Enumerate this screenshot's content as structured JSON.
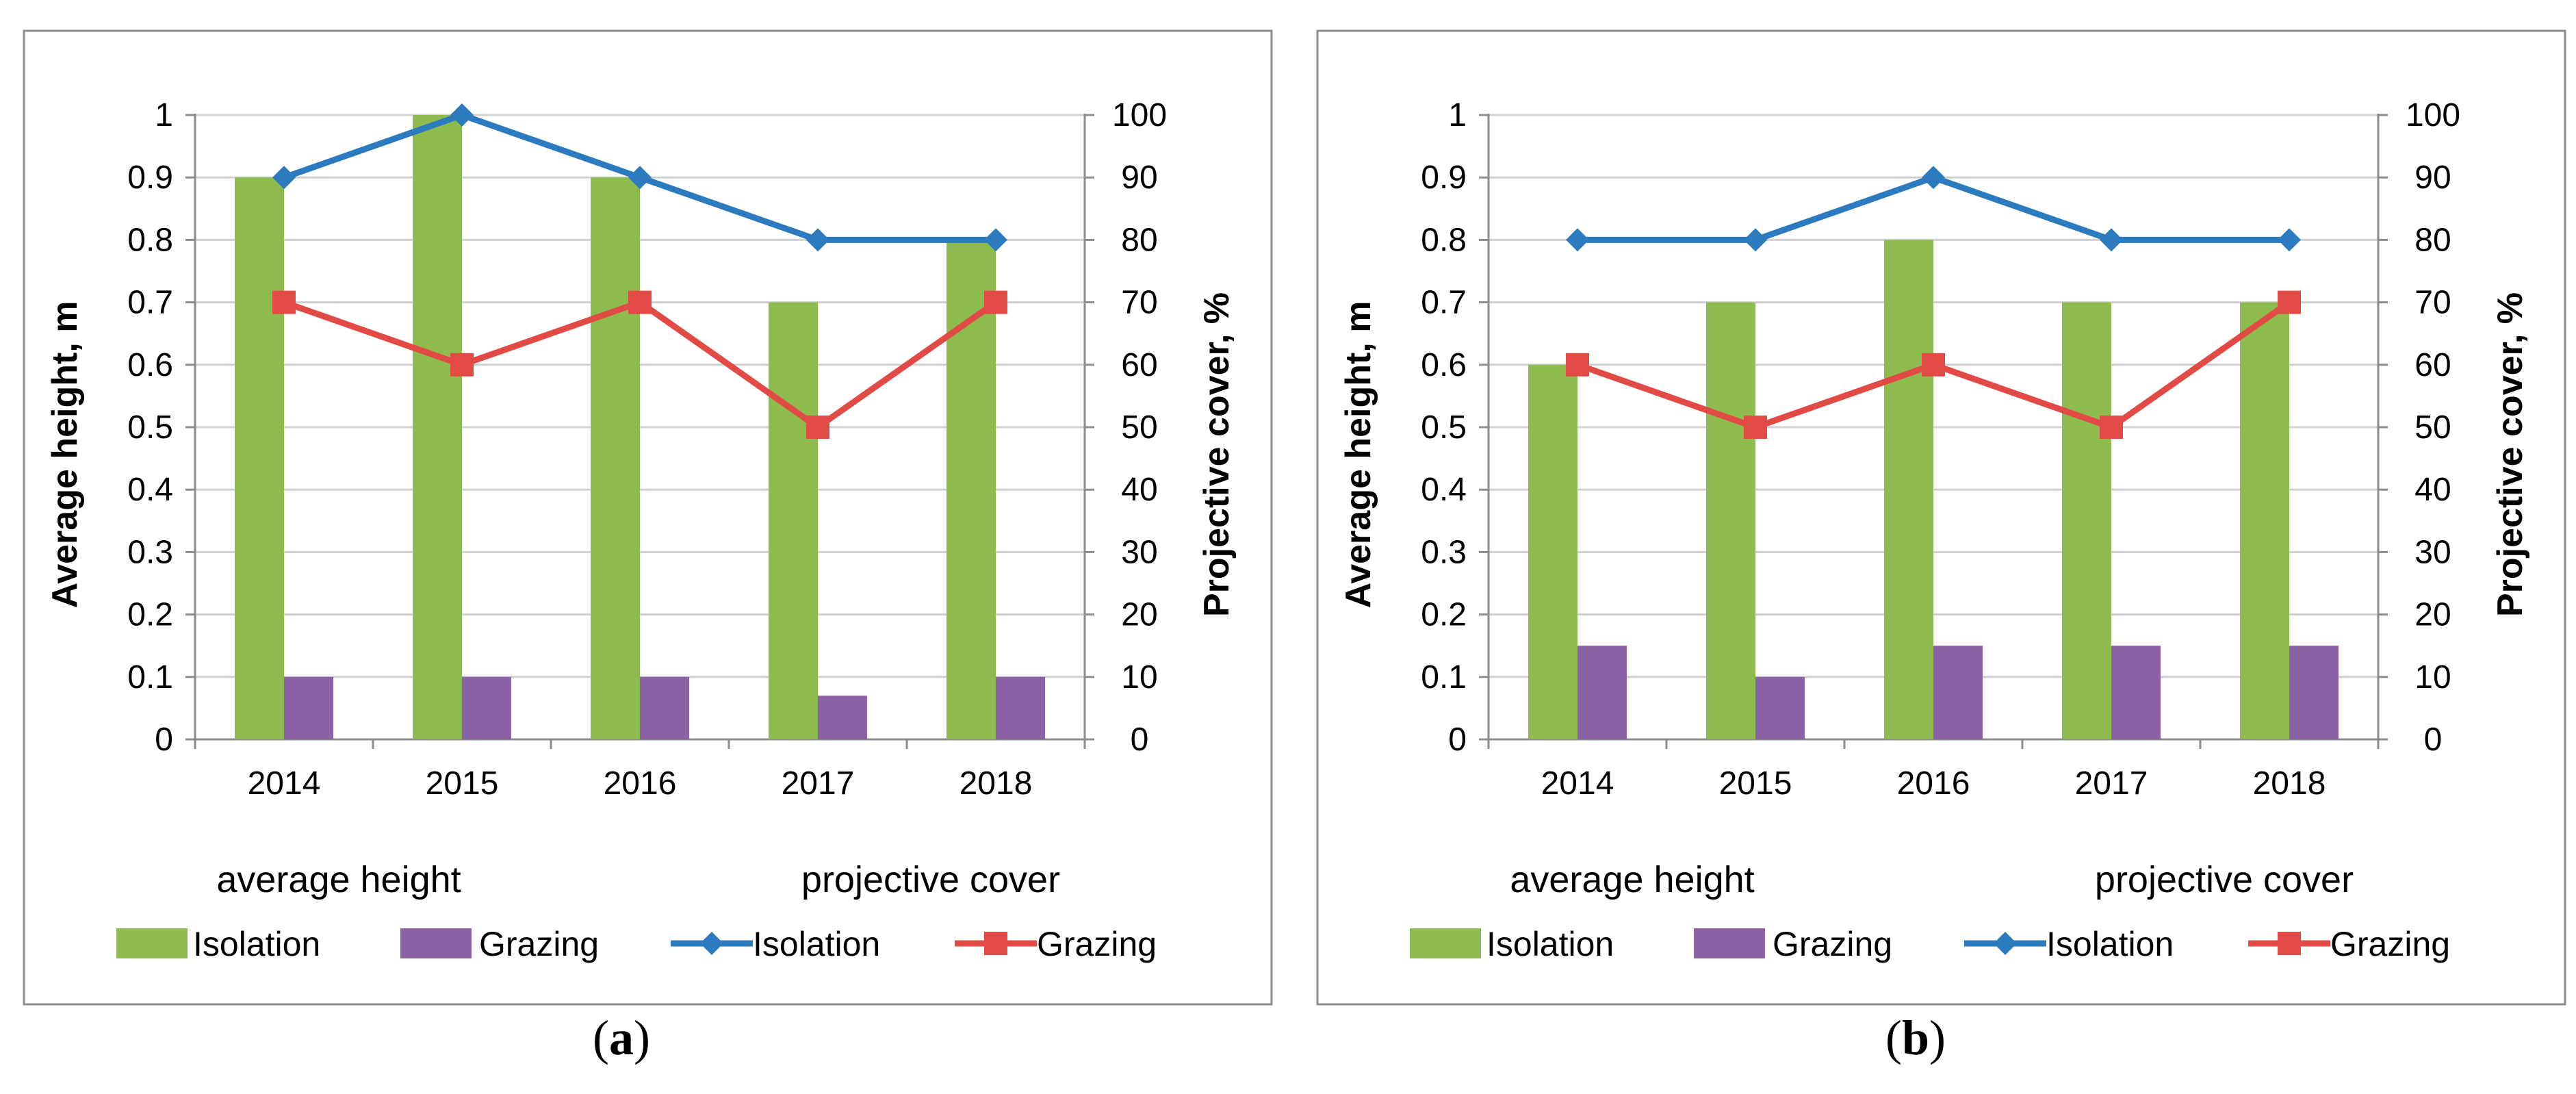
{
  "chart_data": [
    {
      "panel": "a",
      "type": "bar+line",
      "categories": [
        "2014",
        "2015",
        "2016",
        "2017",
        "2018"
      ],
      "y_left": {
        "label": "Average height, m",
        "range": [
          0,
          1
        ],
        "ticks": [
          "0",
          "0.1",
          "0.2",
          "0.3",
          "0.4",
          "0.5",
          "0.6",
          "0.7",
          "0.8",
          "0.9",
          "1"
        ]
      },
      "y_right": {
        "label": "Projective cover, %",
        "range": [
          0,
          100
        ],
        "ticks": [
          "0",
          "10",
          "20",
          "30",
          "40",
          "50",
          "60",
          "70",
          "80",
          "90",
          "100"
        ]
      },
      "legend_group_labels": [
        "average height",
        "projective cover"
      ],
      "bar_series": [
        {
          "name": "Isolation",
          "axis": "left",
          "color": "#8DBB4E",
          "values": [
            0.9,
            1.0,
            0.9,
            0.7,
            0.8
          ]
        },
        {
          "name": "Grazing",
          "axis": "left",
          "color": "#8B62A8",
          "values": [
            0.1,
            0.1,
            0.1,
            0.07,
            0.1
          ]
        }
      ],
      "line_series": [
        {
          "name": "Isolation",
          "axis": "right",
          "color": "#2B7BBE",
          "marker": "diamond",
          "values": [
            90,
            100,
            90,
            80,
            80
          ]
        },
        {
          "name": "Grazing",
          "axis": "right",
          "color": "#E24A45",
          "marker": "square",
          "values": [
            70,
            60,
            70,
            50,
            70
          ]
        }
      ]
    },
    {
      "panel": "b",
      "type": "bar+line",
      "categories": [
        "2014",
        "2015",
        "2016",
        "2017",
        "2018"
      ],
      "y_left": {
        "label": "Average height, m",
        "range": [
          0,
          1
        ],
        "ticks": [
          "0",
          "0.1",
          "0.2",
          "0.3",
          "0.4",
          "0.5",
          "0.6",
          "0.7",
          "0.8",
          "0.9",
          "1"
        ]
      },
      "y_right": {
        "label": "Projective cover, %",
        "range": [
          0,
          100
        ],
        "ticks": [
          "0",
          "10",
          "20",
          "30",
          "40",
          "50",
          "60",
          "70",
          "80",
          "90",
          "100"
        ]
      },
      "legend_group_labels": [
        "average height",
        "projective cover"
      ],
      "bar_series": [
        {
          "name": "Isolation",
          "axis": "left",
          "color": "#8DBB4E",
          "values": [
            0.6,
            0.7,
            0.8,
            0.7,
            0.7
          ]
        },
        {
          "name": "Grazing",
          "axis": "left",
          "color": "#8B62A8",
          "values": [
            0.15,
            0.1,
            0.15,
            0.15,
            0.15
          ]
        }
      ],
      "line_series": [
        {
          "name": "Isolation",
          "axis": "right",
          "color": "#2B7BBE",
          "marker": "diamond",
          "values": [
            80,
            80,
            90,
            80,
            80
          ]
        },
        {
          "name": "Grazing",
          "axis": "right",
          "color": "#E24A45",
          "marker": "square",
          "values": [
            60,
            50,
            60,
            50,
            70
          ]
        }
      ]
    }
  ],
  "panel_labels": {
    "a_open": "(",
    "a_letter": "a",
    "a_close": ")",
    "b_open": "(",
    "b_letter": "b",
    "b_close": ")"
  }
}
